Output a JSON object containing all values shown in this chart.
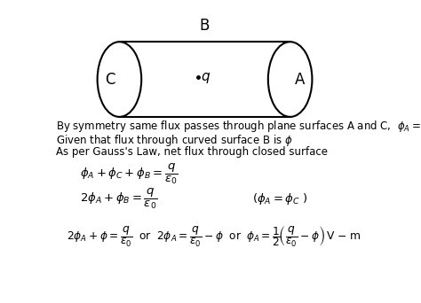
{
  "bg_color": "#ffffff",
  "text_color": "#000000",
  "line0": "By symmetry same flux passes through plane surfaces A and C,  $\\phi_A = \\phi_C$",
  "line1": "Given that flux through curved surface B is $\\phi$",
  "line2": "As per Gauss's Law, net flux through closed surface",
  "eq1": "$\\phi_A + \\phi_C + \\phi_B = \\dfrac{q}{\\varepsilon_0}$",
  "eq2": "$2\\phi_A + \\phi_B = \\dfrac{q}{\\varepsilon_0}$",
  "eq2_note": "$(\\phi_A = \\phi_C\\ )$",
  "eq3": "$2\\phi_A + \\phi = \\dfrac{q}{\\varepsilon_0}\\;$ or $\\;2\\phi_A = \\dfrac{q}{\\varepsilon_0} - \\phi\\;$ or $\\;\\phi_A = \\dfrac{1}{2}\\!\\left(\\dfrac{q}{\\varepsilon_0} - \\phi\\right)\\!$ V $-$ m",
  "label_B": "B",
  "label_C": "C",
  "label_A": "A"
}
